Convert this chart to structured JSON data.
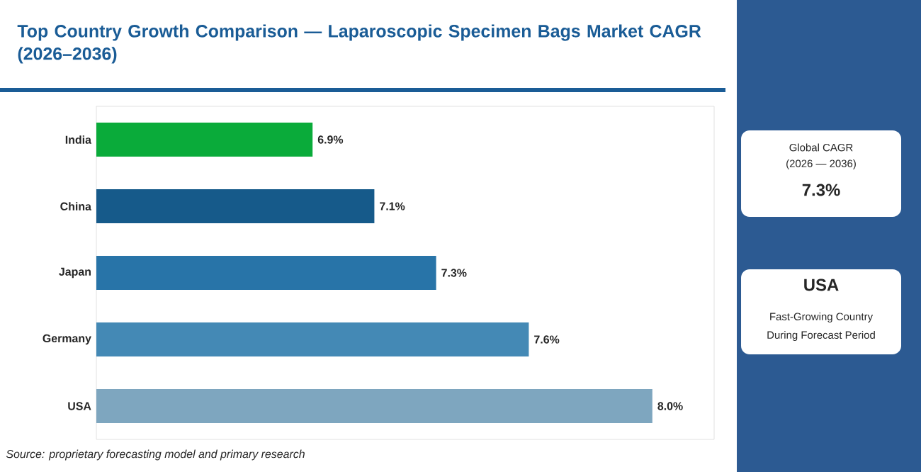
{
  "chart_data": [
    {
      "type": "bar",
      "orientation": "horizontal",
      "title": "Top Country Growth Comparison — Laparoscopic Specimen Bags Market CAGR (2026–2036)",
      "categories": [
        "India",
        "China",
        "Japan",
        "Germany",
        "USA"
      ],
      "values": [
        6.9,
        7.1,
        7.3,
        7.6,
        8.0
      ],
      "colors": [
        "#0aab3a",
        "#165a8a",
        "#2874a8",
        "#4489b5",
        "#7ea6bf"
      ],
      "value_labels": [
        "6.9%",
        "7.1%",
        "7.3%",
        "7.6%",
        "8.0%"
      ],
      "xlim": [
        6.2,
        8.2
      ],
      "annotations": [
        "Source: proprietary forecasting model and primary research"
      ]
    },
    {
      "type": "other",
      "annotations": [
        "Global CAGR",
        "(2026 — 2036)",
        "7.3%",
        "USA",
        "Fast-Growing Country",
        "During Forecast Period"
      ]
    }
  ]
}
